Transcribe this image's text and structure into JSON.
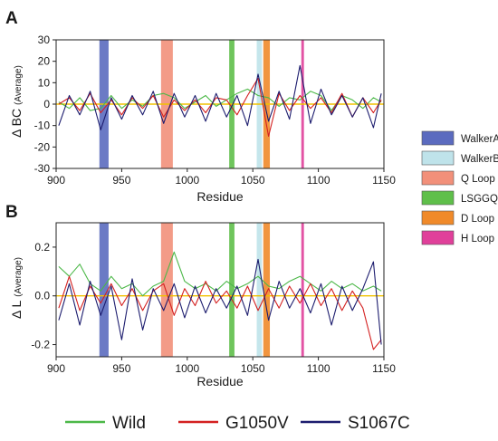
{
  "panels": [
    {
      "label": "A",
      "ylabel_main": "Δ BC",
      "ylabel_paren": "(Average)",
      "xlabel": "Residue"
    },
    {
      "label": "B",
      "ylabel_main": "Δ L",
      "ylabel_paren": "(Average)",
      "xlabel": "Residue"
    }
  ],
  "region_legend": [
    {
      "name": "WalkerA",
      "color": "#5b6bbf"
    },
    {
      "name": "WalkerB",
      "color": "#bfe3ea"
    },
    {
      "name": "Q Loop",
      "color": "#f2907a"
    },
    {
      "name": "LSGGQ",
      "color": "#5fbf4a"
    },
    {
      "name": "D Loop",
      "color": "#f08a2a"
    },
    {
      "name": "H Loop",
      "color": "#e0409a"
    }
  ],
  "series_legend": [
    {
      "name": "Wild",
      "color": "#4cb848"
    },
    {
      "name": "G1050V",
      "color": "#d42020"
    },
    {
      "name": "S1067C",
      "color": "#1c1c6e"
    }
  ],
  "zero_line_color": "#f2c200",
  "chart_data": [
    {
      "type": "line",
      "panel": "A",
      "title": "",
      "xlabel": "Residue",
      "ylabel": "Δ BC (Average)",
      "xlim": [
        900,
        1150
      ],
      "ylim": [
        -30,
        30
      ],
      "xticks": [
        900,
        950,
        1000,
        1050,
        1100,
        1150
      ],
      "yticks": [
        30,
        20,
        10,
        0,
        -10,
        -20,
        -30
      ],
      "regions": [
        {
          "name": "WalkerA",
          "start": 933,
          "end": 940
        },
        {
          "name": "Q Loop",
          "start": 980,
          "end": 989
        },
        {
          "name": "LSGGQ",
          "start": 1032,
          "end": 1036
        },
        {
          "name": "WalkerB",
          "start": 1053,
          "end": 1057
        },
        {
          "name": "D Loop",
          "start": 1058,
          "end": 1063
        },
        {
          "name": "H Loop",
          "start": 1087,
          "end": 1089
        }
      ],
      "x": [
        902,
        910,
        918,
        926,
        934,
        942,
        950,
        958,
        966,
        974,
        982,
        990,
        998,
        1006,
        1014,
        1022,
        1030,
        1038,
        1046,
        1054,
        1062,
        1070,
        1078,
        1086,
        1094,
        1102,
        1110,
        1118,
        1126,
        1134,
        1142,
        1148
      ],
      "series": [
        {
          "name": "Wild",
          "values": [
            1,
            -2,
            3,
            -3,
            -2,
            4,
            -2,
            2,
            -1,
            4,
            5,
            3,
            -2,
            1,
            4,
            -1,
            2,
            5,
            7,
            4,
            3,
            -1,
            3,
            2,
            6,
            4,
            -3,
            4,
            2,
            -2,
            3,
            1
          ]
        },
        {
          "name": "G1050V",
          "values": [
            0,
            3,
            -3,
            5,
            -4,
            2,
            -5,
            3,
            -2,
            4,
            -6,
            2,
            -3,
            2,
            -4,
            3,
            2,
            -5,
            4,
            12,
            -15,
            5,
            -3,
            4,
            -2,
            3,
            -4,
            5,
            -6,
            3,
            -4,
            2
          ]
        },
        {
          "name": "S1067C",
          "values": [
            -10,
            4,
            -5,
            6,
            -12,
            3,
            -7,
            4,
            -5,
            6,
            -9,
            5,
            -6,
            4,
            -8,
            5,
            -6,
            4,
            -10,
            14,
            -8,
            6,
            -7,
            18,
            -9,
            7,
            -5,
            4,
            -6,
            3,
            -11,
            5
          ]
        }
      ]
    },
    {
      "type": "line",
      "panel": "B",
      "title": "",
      "xlabel": "Residue",
      "ylabel": "Δ L (Average)",
      "xlim": [
        900,
        1150
      ],
      "ylim": [
        -0.25,
        0.3
      ],
      "xticks": [
        900,
        950,
        1000,
        1050,
        1100,
        1150
      ],
      "yticks": [
        0.2,
        0.0,
        -0.2
      ],
      "regions": [
        {
          "name": "WalkerA",
          "start": 933,
          "end": 940
        },
        {
          "name": "Q Loop",
          "start": 980,
          "end": 989
        },
        {
          "name": "LSGGQ",
          "start": 1032,
          "end": 1036
        },
        {
          "name": "WalkerB",
          "start": 1053,
          "end": 1057
        },
        {
          "name": "D Loop",
          "start": 1058,
          "end": 1063
        },
        {
          "name": "H Loop",
          "start": 1087,
          "end": 1089
        }
      ],
      "x": [
        902,
        910,
        918,
        926,
        934,
        942,
        950,
        958,
        966,
        974,
        982,
        990,
        998,
        1006,
        1014,
        1022,
        1030,
        1038,
        1046,
        1054,
        1062,
        1070,
        1078,
        1086,
        1094,
        1102,
        1110,
        1118,
        1126,
        1134,
        1142,
        1148
      ],
      "series": [
        {
          "name": "Wild",
          "values": [
            0.12,
            0.08,
            0.13,
            0.05,
            0.02,
            0.08,
            0.03,
            0.05,
            0.0,
            0.04,
            0.06,
            0.18,
            0.06,
            0.03,
            0.05,
            0.02,
            0.06,
            0.03,
            0.05,
            0.08,
            0.04,
            0.03,
            0.06,
            0.08,
            0.05,
            0.02,
            0.06,
            0.03,
            0.05,
            0.02,
            0.04,
            0.02
          ]
        },
        {
          "name": "G1050V",
          "values": [
            -0.05,
            0.08,
            -0.06,
            0.04,
            -0.03,
            0.05,
            -0.04,
            0.03,
            -0.06,
            0.02,
            0.05,
            -0.08,
            0.03,
            -0.04,
            0.06,
            -0.03,
            0.02,
            -0.05,
            0.04,
            -0.06,
            0.03,
            -0.05,
            0.04,
            -0.03,
            0.05,
            -0.04,
            0.03,
            -0.06,
            0.02,
            -0.05,
            -0.22,
            -0.18
          ]
        },
        {
          "name": "S1067C",
          "values": [
            -0.1,
            0.05,
            -0.12,
            0.06,
            -0.08,
            0.04,
            -0.18,
            0.07,
            -0.14,
            0.03,
            -0.06,
            0.05,
            -0.09,
            0.04,
            -0.07,
            0.03,
            -0.05,
            0.04,
            -0.08,
            0.15,
            -0.1,
            0.06,
            -0.05,
            0.03,
            -0.07,
            0.05,
            -0.12,
            0.04,
            -0.06,
            0.03,
            0.14,
            -0.2
          ]
        }
      ]
    }
  ]
}
